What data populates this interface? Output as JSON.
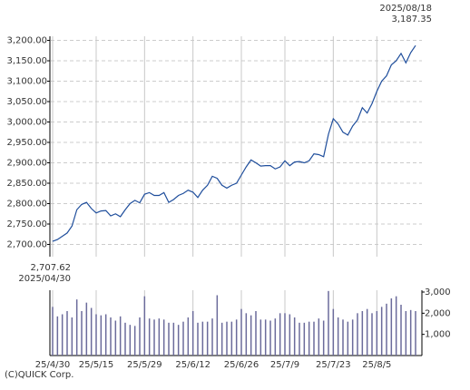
{
  "chart_data": {
    "type": "line",
    "color": "#1f4e9c",
    "categories": [
      "25/4/30",
      null,
      null,
      null,
      null,
      null,
      null,
      null,
      null,
      "25/5/15",
      null,
      null,
      null,
      null,
      null,
      null,
      null,
      null,
      null,
      "25/5/29",
      null,
      null,
      null,
      null,
      null,
      null,
      null,
      null,
      null,
      "25/6/12",
      null,
      null,
      null,
      null,
      null,
      null,
      null,
      null,
      null,
      "25/6/26",
      null,
      null,
      null,
      null,
      null,
      null,
      null,
      null,
      "25/7/9",
      null,
      null,
      null,
      null,
      null,
      null,
      null,
      null,
      null,
      "25/7/23",
      null,
      null,
      null,
      null,
      null,
      null,
      null,
      null,
      "25/8/5",
      null,
      null,
      null,
      null,
      null,
      null,
      null,
      null
    ],
    "values": [
      2707.62,
      2712,
      2720,
      2728,
      2745,
      2785,
      2798,
      2803,
      2788,
      2777,
      2782,
      2783,
      2770,
      2775,
      2768,
      2785,
      2800,
      2808,
      2802,
      2823,
      2827,
      2820,
      2820,
      2827,
      2803,
      2810,
      2820,
      2825,
      2833,
      2828,
      2815,
      2833,
      2845,
      2867,
      2862,
      2845,
      2838,
      2845,
      2850,
      2870,
      2890,
      2907,
      2900,
      2892,
      2893,
      2893,
      2885,
      2890,
      2905,
      2893,
      2902,
      2903,
      2900,
      2905,
      2922,
      2920,
      2915,
      2970,
      3008,
      2995,
      2975,
      2968,
      2990,
      3005,
      3035,
      3022,
      3045,
      3075,
      3100,
      3113,
      3140,
      3150,
      3168,
      3145,
      3170,
      3187.35
    ],
    "value_labels": [
      "2,707.62",
      null,
      null,
      null,
      null,
      null,
      null,
      null,
      null,
      null,
      null,
      null,
      null,
      null,
      null,
      null,
      null,
      null,
      null,
      null,
      null,
      null,
      null,
      null,
      null,
      null,
      null,
      null,
      null,
      null,
      null,
      null,
      null,
      null,
      null,
      null,
      null,
      null,
      null,
      null,
      null,
      null,
      null,
      null,
      null,
      null,
      null,
      null,
      null,
      null,
      null,
      null,
      null,
      null,
      null,
      null,
      null,
      null,
      null,
      null,
      null,
      null,
      null,
      null,
      null,
      null,
      null,
      null,
      null,
      null,
      null,
      null,
      null,
      null,
      null,
      "3,187.35"
    ],
    "start_date_label": "2025/04/30",
    "end_date_label": "2025/08/18",
    "ylim": [
      2670,
      3210
    ],
    "yticks": [
      {
        "value": 2700,
        "label": "2,700.00"
      },
      {
        "value": 2750,
        "label": "2,750.00"
      },
      {
        "value": 2800,
        "label": "2,800.00"
      },
      {
        "value": 2850,
        "label": "2,850.00"
      },
      {
        "value": 2900,
        "label": "2,900.00"
      },
      {
        "value": 2950,
        "label": "2,950.00"
      },
      {
        "value": 3000,
        "label": "3,000.00"
      },
      {
        "value": 3050,
        "label": "3,050.00"
      },
      {
        "value": 3100,
        "label": "3,100.00"
      },
      {
        "value": 3150,
        "label": "3,150.00"
      },
      {
        "value": 3200,
        "label": "3,200.00"
      }
    ],
    "grid": true,
    "volume": {
      "type": "bar",
      "color": "#6b6b9b",
      "values": [
        2300,
        1850,
        1950,
        2100,
        1800,
        2650,
        2100,
        2500,
        2250,
        1950,
        1900,
        1950,
        1800,
        1650,
        1850,
        1550,
        1450,
        1400,
        1800,
        2800,
        1750,
        1700,
        1750,
        1700,
        1550,
        1550,
        1450,
        1600,
        1800,
        2100,
        1550,
        1600,
        1600,
        1750,
        2850,
        1550,
        1600,
        1600,
        1700,
        2200,
        2000,
        1900,
        2100,
        1700,
        1700,
        1650,
        1750,
        2000,
        2000,
        1950,
        1800,
        1550,
        1550,
        1600,
        1600,
        1750,
        1650,
        3050,
        2200,
        1800,
        1700,
        1600,
        1700,
        2000,
        2100,
        2200,
        2000,
        2100,
        2300,
        2450,
        2700,
        2800,
        2400,
        2100,
        2150,
        2100
      ],
      "ylim": [
        0,
        3000
      ],
      "yticks": [
        {
          "value": 1000,
          "label": "1,000"
        },
        {
          "value": 2000,
          "label": "2,000"
        },
        {
          "value": 3000,
          "label": "3,000"
        }
      ]
    },
    "copyright": "(C)QUICK Corp."
  }
}
